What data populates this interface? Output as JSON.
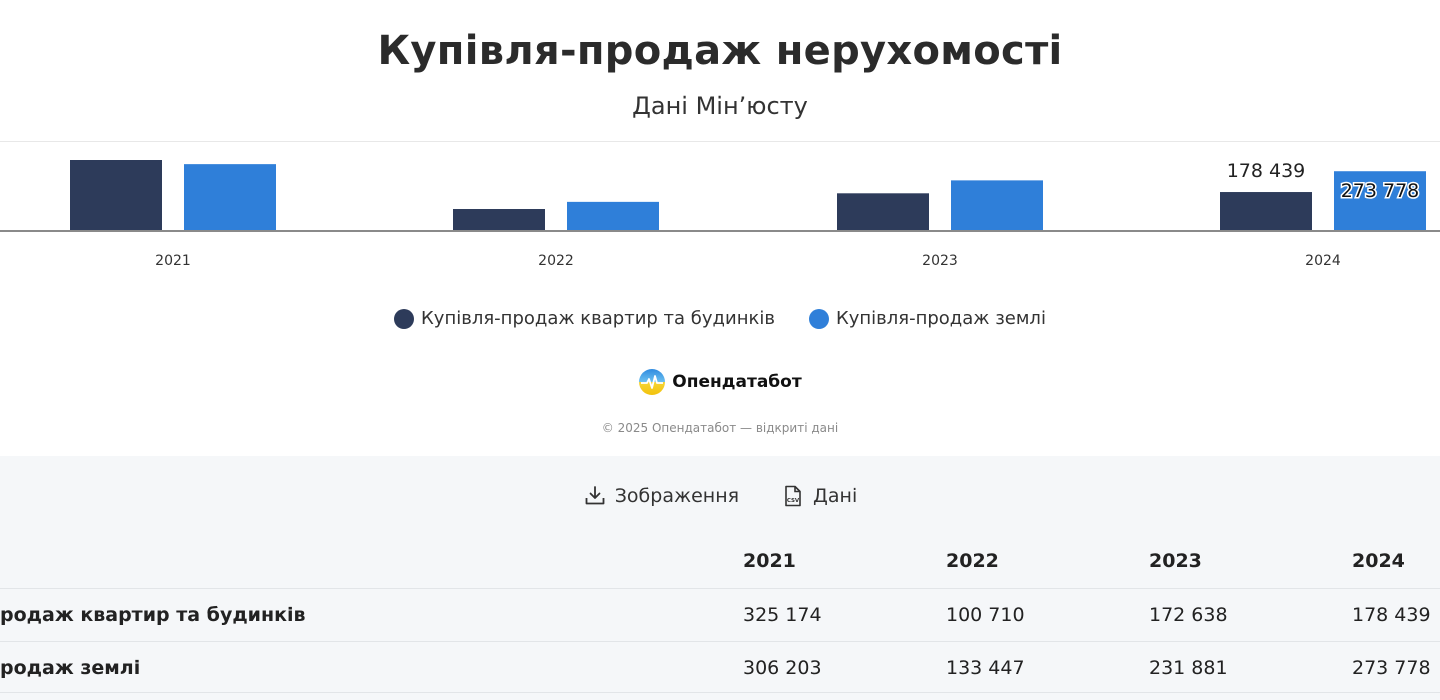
{
  "header": {
    "title": "Купівля-продаж нерухомості",
    "subtitle": "Дані Мін’юсту"
  },
  "chart_data": {
    "type": "bar",
    "title": "Купівля-продаж нерухомості",
    "subtitle": "Дані Мін’юсту",
    "categories": [
      "2021",
      "2022",
      "2023",
      "2024"
    ],
    "series": [
      {
        "name": "Купівля-продаж квартир та будинків",
        "color": "#2d3b5a",
        "values": [
          325174,
          100710,
          172638,
          178439
        ]
      },
      {
        "name": "Купівля-продаж землі",
        "color": "#2f7fd9",
        "values": [
          306203,
          133447,
          231881,
          273778
        ]
      }
    ],
    "data_labels": {
      "s0_2024": "178 439",
      "s1_2024": "273 778"
    },
    "ylim": [
      0,
      330000
    ],
    "grid": false,
    "legend_position": "bottom"
  },
  "legend": {
    "items": [
      {
        "label": "Купівля-продаж квартир та будинків",
        "color": "#2d3b5a"
      },
      {
        "label": "Купівля-продаж землі",
        "color": "#2f7fd9"
      }
    ]
  },
  "brand": {
    "name": "Опендатабот",
    "copyright": "© 2025 Опендатабот — відкриті дані"
  },
  "downloads": {
    "image_label": "Зображення",
    "data_label": "Дані",
    "image_icon": "download-icon",
    "data_icon": "csv-file-icon"
  },
  "table": {
    "columns": [
      "2021",
      "2022",
      "2023",
      "2024"
    ],
    "rows": [
      {
        "label": "родаж квартир та будинків",
        "values": [
          "325 174",
          "100 710",
          "172 638",
          "178 439"
        ]
      },
      {
        "label": "родаж землі",
        "values": [
          "306 203",
          "133 447",
          "231 881",
          "273 778"
        ]
      }
    ]
  }
}
